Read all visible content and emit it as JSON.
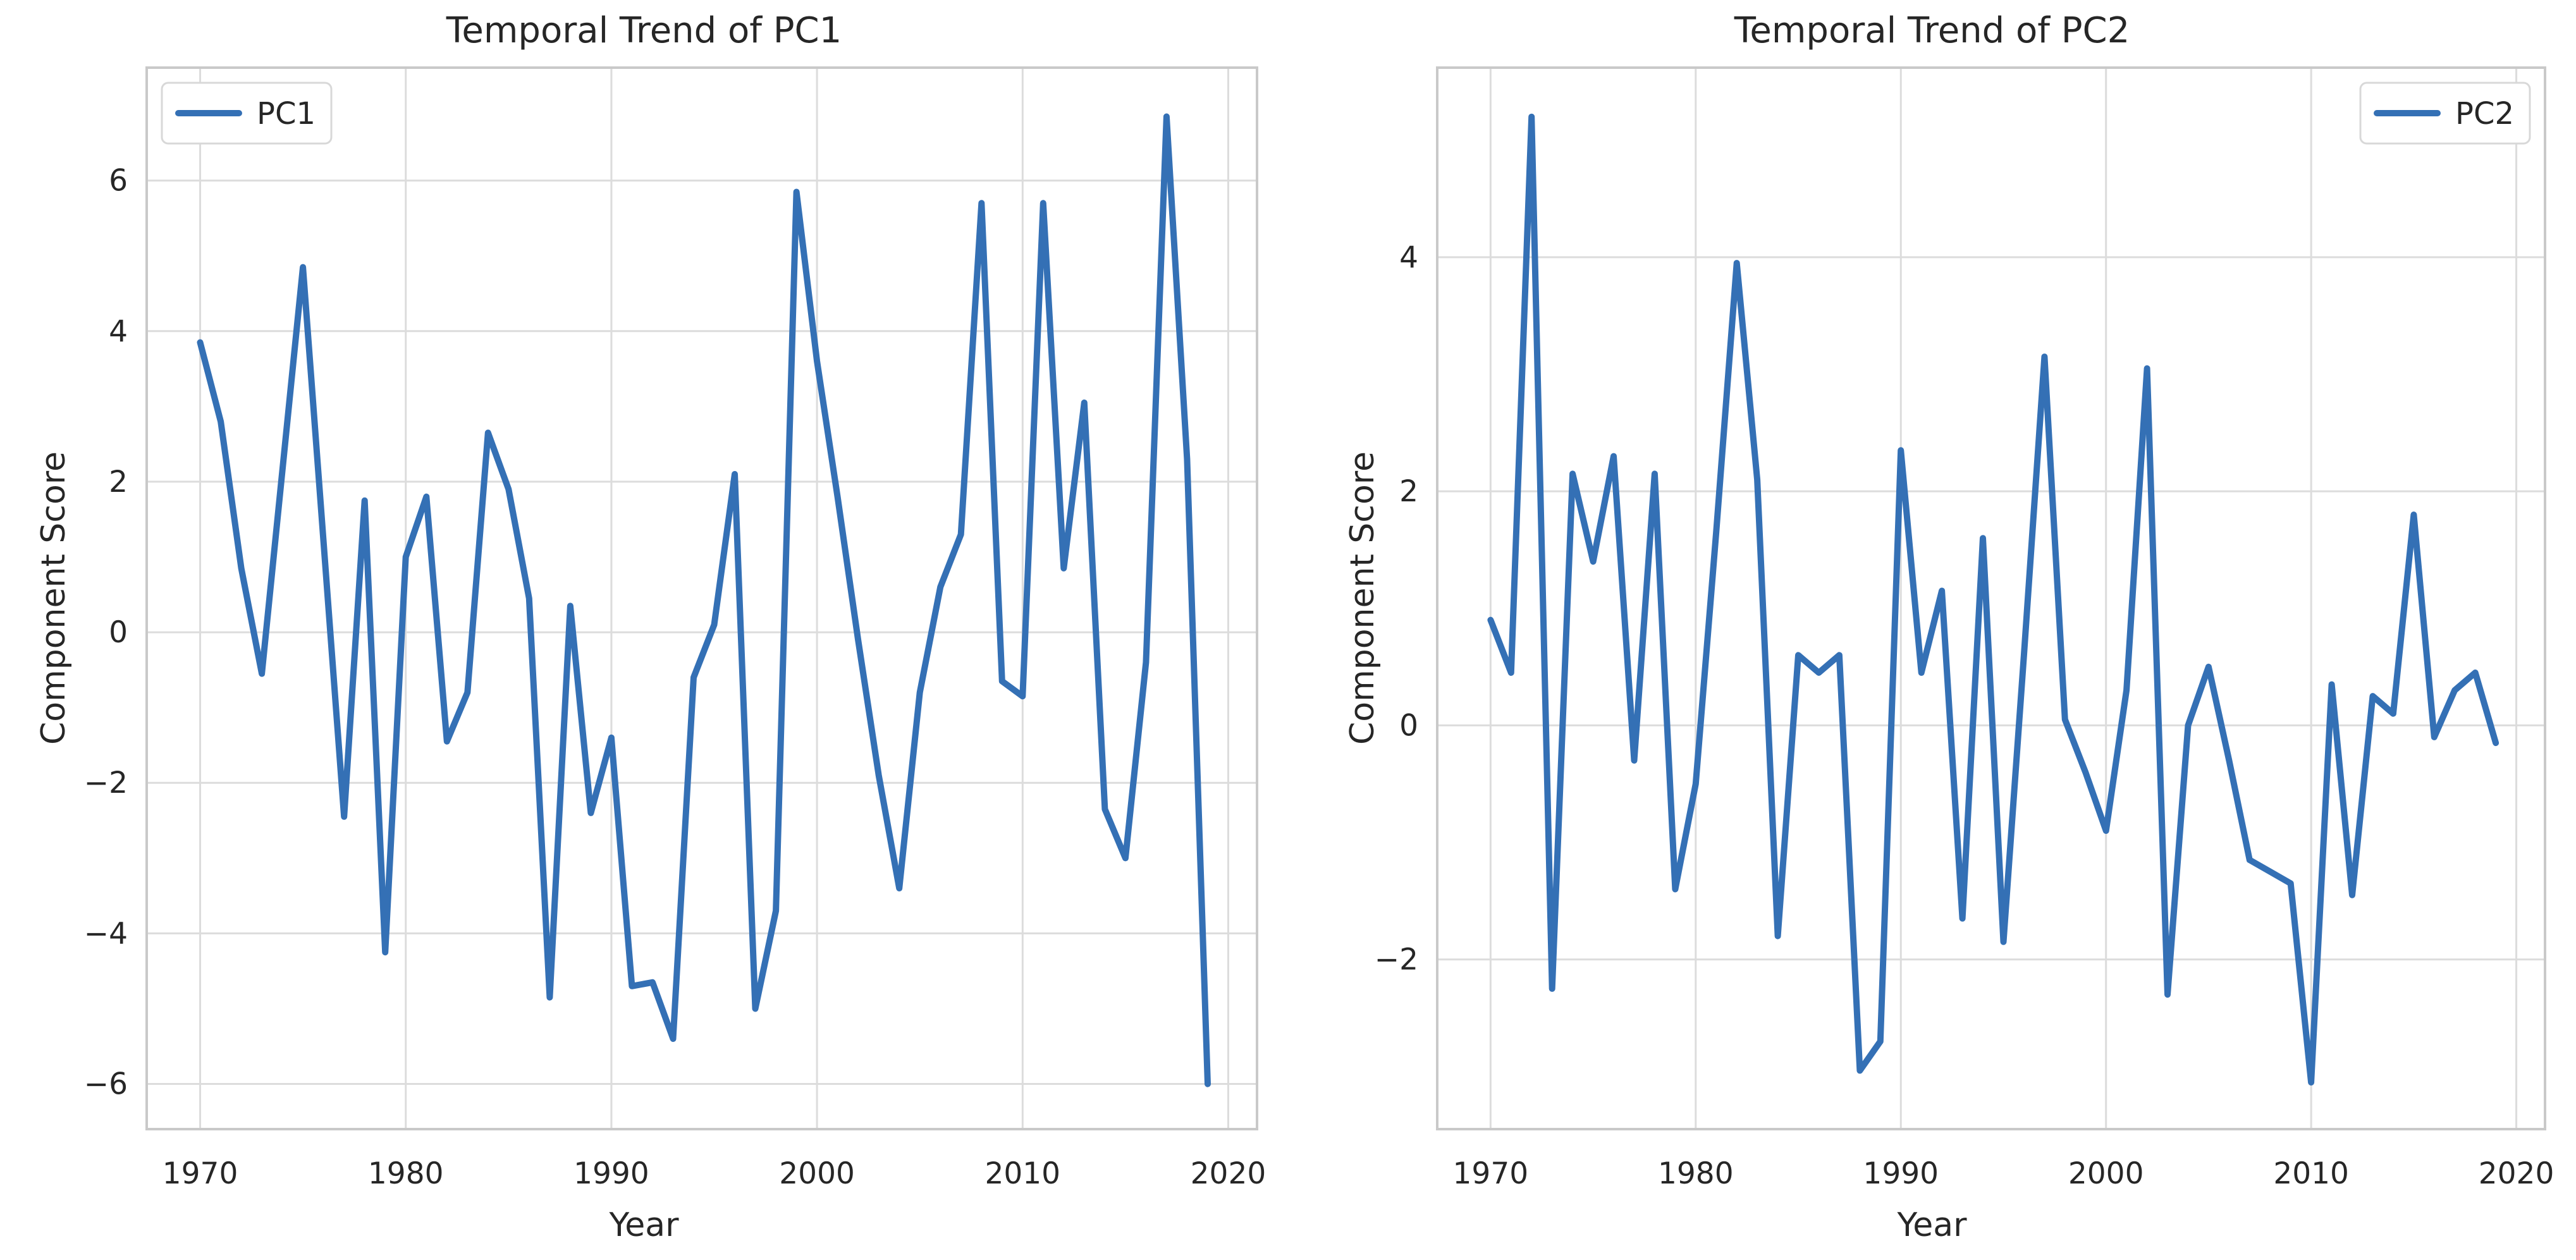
{
  "figure": {
    "background": "#ffffff",
    "text_color": "#262626",
    "grid_color": "#dcdcdc",
    "spine_color": "#c9c9c9",
    "legend_border_color": "#d8d8d8",
    "legend_background": "#ffffff"
  },
  "chart_data": [
    {
      "type": "line",
      "title": "Temporal Trend of PC1",
      "xlabel": "Year",
      "ylabel": "Component Score",
      "legend": {
        "label": "PC1",
        "position": "upper-left"
      },
      "line_color": "#3470b5",
      "grid": true,
      "xlim": [
        1967.4,
        2021.4
      ],
      "ylim": [
        -6.6,
        7.5
      ],
      "xticks": [
        1970,
        1980,
        1990,
        2000,
        2010,
        2020
      ],
      "yticks": [
        6,
        4,
        2,
        0,
        -2,
        -4,
        -6
      ],
      "x": [
        1970,
        1971,
        1972,
        1973,
        1974,
        1975,
        1976,
        1977,
        1978,
        1979,
        1980,
        1981,
        1982,
        1983,
        1984,
        1985,
        1986,
        1987,
        1988,
        1989,
        1990,
        1991,
        1992,
        1993,
        1994,
        1995,
        1996,
        1997,
        1998,
        1999,
        2000,
        2001,
        2002,
        2003,
        2004,
        2005,
        2006,
        2007,
        2008,
        2009,
        2010,
        2011,
        2012,
        2013,
        2014,
        2015,
        2016,
        2017,
        2018,
        2019
      ],
      "values": [
        3.85,
        2.8,
        0.85,
        -0.55,
        2.15,
        4.85,
        1.2,
        -2.45,
        1.75,
        -4.25,
        1.0,
        1.8,
        -1.45,
        -0.8,
        2.65,
        1.9,
        0.45,
        -4.85,
        0.35,
        -2.4,
        -1.4,
        -4.7,
        -4.65,
        -5.4,
        -0.6,
        0.1,
        2.1,
        -5.0,
        -3.7,
        5.85,
        3.6,
        1.8,
        -0.1,
        -1.9,
        -3.4,
        -0.8,
        0.6,
        1.3,
        5.7,
        -0.65,
        -0.85,
        5.7,
        0.85,
        3.05,
        -2.35,
        -3.0,
        -0.4,
        6.85,
        2.3,
        -6.0
      ]
    },
    {
      "type": "line",
      "title": "Temporal Trend of PC2",
      "xlabel": "Year",
      "ylabel": "Component Score",
      "legend": {
        "label": "PC2",
        "position": "upper-right"
      },
      "line_color": "#3470b5",
      "grid": true,
      "xlim": [
        1967.4,
        2021.4
      ],
      "ylim": [
        -3.45,
        5.62
      ],
      "xticks": [
        1970,
        1980,
        1990,
        2000,
        2010,
        2020
      ],
      "yticks": [
        4,
        2,
        0,
        -2
      ],
      "x": [
        1970,
        1971,
        1972,
        1973,
        1974,
        1975,
        1976,
        1977,
        1978,
        1979,
        1980,
        1981,
        1982,
        1983,
        1984,
        1985,
        1986,
        1987,
        1988,
        1989,
        1990,
        1991,
        1992,
        1993,
        1994,
        1995,
        1996,
        1997,
        1998,
        1999,
        2000,
        2001,
        2002,
        2003,
        2004,
        2005,
        2006,
        2007,
        2008,
        2009,
        2010,
        2011,
        2012,
        2013,
        2014,
        2015,
        2016,
        2017,
        2018,
        2019
      ],
      "values": [
        0.9,
        0.45,
        5.2,
        -2.25,
        2.15,
        1.4,
        2.3,
        -0.3,
        2.15,
        -1.4,
        -0.5,
        1.65,
        3.95,
        2.1,
        -1.8,
        0.6,
        0.45,
        0.6,
        -2.95,
        -2.7,
        2.35,
        0.45,
        1.15,
        -1.65,
        1.6,
        -1.85,
        0.6,
        3.15,
        0.05,
        -0.4,
        -0.9,
        0.3,
        3.05,
        -2.3,
        0.0,
        0.5,
        -0.3,
        -1.15,
        -1.25,
        -1.35,
        -3.05,
        0.35,
        -1.45,
        0.25,
        0.1,
        1.8,
        -0.1,
        0.3,
        0.45,
        -0.15
      ]
    }
  ]
}
